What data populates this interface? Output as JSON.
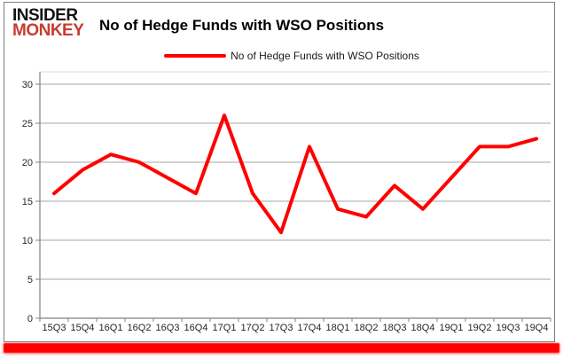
{
  "logo": {
    "line1": "INSIDER",
    "line2": "MONKEY"
  },
  "header": {
    "title": "No of Hedge Funds with WSO Positions"
  },
  "legend": {
    "label": "No of Hedge Funds with WSO Positions"
  },
  "colors": {
    "series_line": "#ff0000",
    "legend_swatch": "#ff0000",
    "bottom_bar": "#ff0000",
    "gridline": "#a6a6a6",
    "axis": "#808080",
    "plot_border": "#d9d9d9",
    "tick_text": "#262626",
    "logo_black": "#141414",
    "logo_red": "#c63d2f",
    "card_border": "#7f7f7f"
  },
  "chart_data": {
    "type": "line",
    "title": "No of Hedge Funds with WSO Positions",
    "categories": [
      "15Q3",
      "15Q4",
      "16Q1",
      "16Q2",
      "16Q3",
      "16Q4",
      "17Q1",
      "17Q2",
      "17Q3",
      "17Q4",
      "18Q1",
      "18Q2",
      "18Q3",
      "18Q4",
      "19Q1",
      "19Q2",
      "19Q3",
      "19Q4"
    ],
    "series": [
      {
        "name": "No of Hedge Funds with WSO Positions",
        "color": "#ff0000",
        "values": [
          16,
          19,
          21,
          20,
          18,
          16,
          26,
          16,
          11,
          22,
          14,
          13,
          17,
          14,
          18,
          22,
          22,
          23
        ]
      }
    ],
    "xlabel": "",
    "ylabel": "",
    "ylim": [
      0,
      30
    ],
    "yticks": [
      0,
      5,
      10,
      15,
      20,
      25,
      30
    ],
    "grid": true,
    "legend_position": "top"
  }
}
